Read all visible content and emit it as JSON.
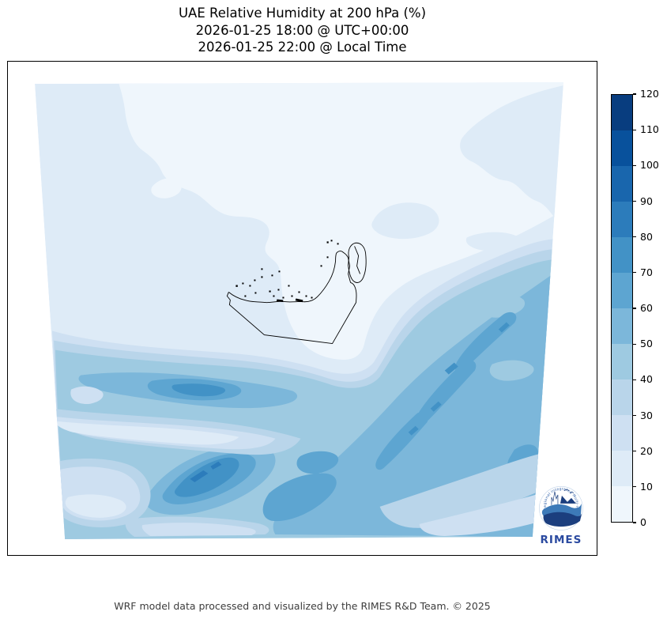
{
  "figure": {
    "title_line1": "UAE Relative Humidity at 200 hPa (%)",
    "title_line2": "2026-01-25 18:00 @ UTC+00:00",
    "title_line3": "2026-01-25 22:00 @ Local Time",
    "footer": "WRF model data processed and visualized by the RIMES R&D Team. © 2025"
  },
  "colorbar": {
    "min": 0,
    "max": 120,
    "ticks": [
      0,
      10,
      20,
      30,
      40,
      50,
      60,
      70,
      80,
      90,
      100,
      110,
      120
    ],
    "colors": [
      "#eff6fc",
      "#deebf7",
      "#cee0f2",
      "#b9d5ea",
      "#9ecae1",
      "#7cb7da",
      "#5da5d1",
      "#4292c6",
      "#2c7cbb",
      "#1966ad",
      "#08519c",
      "#083d7f"
    ]
  },
  "map": {
    "coastline_color": "#000000",
    "outside_color": "#ffffff"
  },
  "logo": {
    "name": "RIMES",
    "ring_text": "Regional Integrated Multi-Hazard Early Warning System",
    "text_color": "#2b4aa0",
    "ring_color": "#2e5fa7",
    "wave_dark": "#1b3e7e",
    "wave_light": "#3d7ab8"
  },
  "chart_data": {
    "type": "heatmap",
    "subtype": "filled_contour_weather_map",
    "title": "UAE Relative Humidity at 200 hPa (%)",
    "subtitle_utc": "2026-01-25 18:00 @ UTC+00:00",
    "subtitle_local": "2026-01-25 22:00 @ Local Time",
    "variable": "Relative Humidity",
    "units": "%",
    "pressure_level": "200 hPa",
    "region": "UAE and surrounding Arabian Gulf / Gulf of Oman domain",
    "model": "WRF",
    "colormap": "Blues",
    "levels": [
      0,
      10,
      20,
      30,
      40,
      50,
      60,
      70,
      80,
      90,
      100,
      110,
      120
    ],
    "colorbar_ticks": [
      0,
      10,
      20,
      30,
      40,
      50,
      60,
      70,
      80,
      90,
      100,
      110,
      120
    ],
    "colorbar_orientation": "vertical-right",
    "overlay": "UAE coastline, islands and land borders drawn in black",
    "field_summary": [
      {
        "area": "northwest quadrant",
        "value_range_pct": "10-20"
      },
      {
        "area": "north-center, northeast and around the UAE coastline",
        "value_range_pct": "0-10"
      },
      {
        "area": "west-central band near left edge",
        "value_range_pct": "40-80",
        "core_pct": "70-80"
      },
      {
        "area": "southwest band with darkest small cores",
        "value_range_pct": "50-90",
        "core_pct": "80-90"
      },
      {
        "area": "broad southeast diagonal band",
        "value_range_pct": "40-80",
        "core_pct": "70-80"
      },
      {
        "area": "bottom-left corner and valley stripes between bands",
        "value_range_pct": "10-30"
      }
    ]
  }
}
